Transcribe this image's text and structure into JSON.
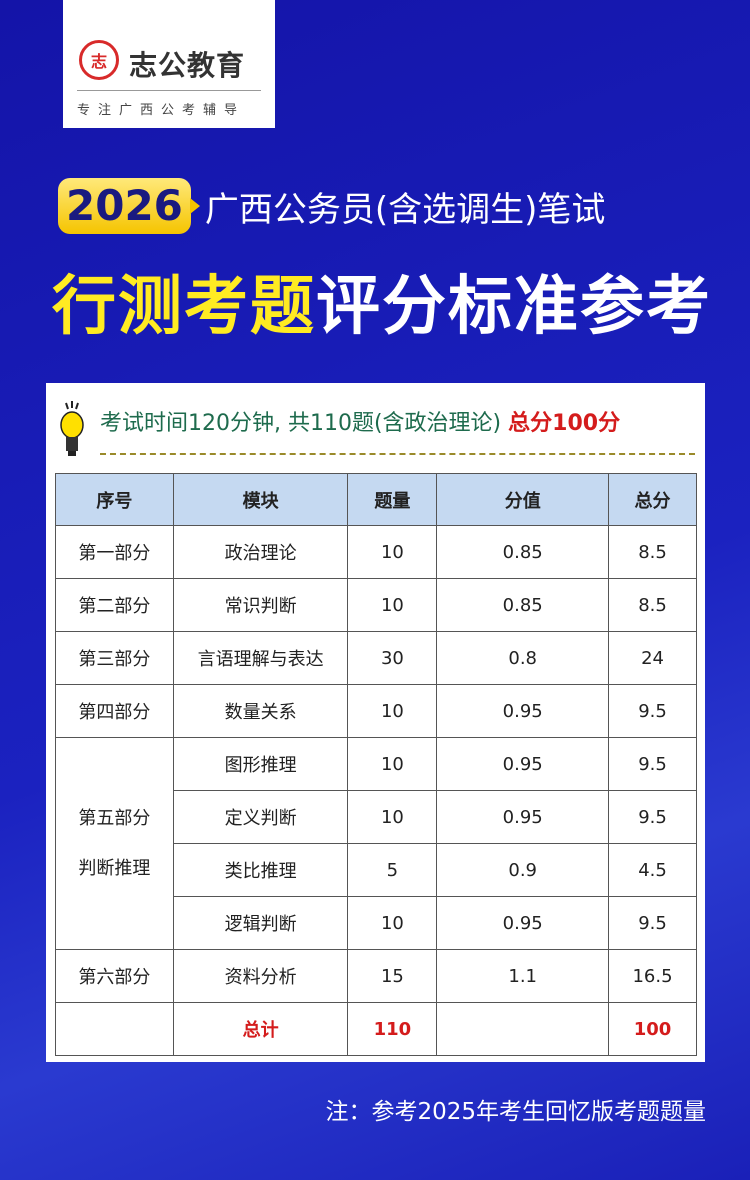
{
  "logo": {
    "seal": "志",
    "brand": "志公教育",
    "slogan": "专注广西公考辅导"
  },
  "title": {
    "year": "2026",
    "subtitle": "广西公务员(含选调生)笔试",
    "main_yellow": "行测考题",
    "main_white": "评分标准参考"
  },
  "info": {
    "text": "考试时间120分钟, 共110题(含政治理论)",
    "highlight": "总分100分",
    "icon": "lightbulb-icon"
  },
  "table": {
    "headers": [
      "序号",
      "模块",
      "题量",
      "分值",
      "总分"
    ],
    "rows": [
      {
        "section": "第一部分",
        "module": "政治理论",
        "count": "10",
        "value": "0.85",
        "total": "8.5"
      },
      {
        "section": "第二部分",
        "module": "常识判断",
        "count": "10",
        "value": "0.85",
        "total": "8.5"
      },
      {
        "section": "第三部分",
        "module": "言语理解与表达",
        "count": "30",
        "value": "0.8",
        "total": "24"
      },
      {
        "section": "第四部分",
        "module": "数量关系",
        "count": "10",
        "value": "0.95",
        "total": "9.5"
      },
      {
        "section": "第五部分",
        "section2": "判断推理",
        "module": "图形推理",
        "count": "10",
        "value": "0.95",
        "total": "9.5"
      },
      {
        "module": "定义判断",
        "count": "10",
        "value": "0.95",
        "total": "9.5"
      },
      {
        "module": "类比推理",
        "count": "5",
        "value": "0.9",
        "total": "4.5"
      },
      {
        "module": "逻辑判断",
        "count": "10",
        "value": "0.95",
        "total": "9.5"
      },
      {
        "section": "第六部分",
        "module": "资料分析",
        "count": "15",
        "value": "1.1",
        "total": "16.5"
      }
    ],
    "total": {
      "label": "总计",
      "count": "110",
      "total": "100"
    }
  },
  "note": "注：参考2025年考生回忆版考题题量",
  "colors": {
    "background": "#1b22c0",
    "accent_yellow": "#ffeb22",
    "red": "#d41c1c",
    "header": "#c5d9f1"
  }
}
